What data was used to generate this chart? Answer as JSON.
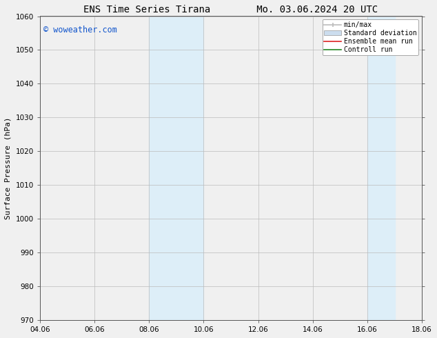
{
  "title_left": "ENS Time Series Tirana",
  "title_right": "Mo. 03.06.2024 20 UTC",
  "ylabel": "Surface Pressure (hPa)",
  "ylim": [
    970,
    1060
  ],
  "yticks": [
    970,
    980,
    990,
    1000,
    1010,
    1020,
    1030,
    1040,
    1050,
    1060
  ],
  "xlim_start": 4.06,
  "xlim_end": 18.06,
  "xtick_labels": [
    "04.06",
    "06.06",
    "08.06",
    "10.06",
    "12.06",
    "14.06",
    "16.06",
    "18.06"
  ],
  "xtick_positions": [
    4.06,
    6.06,
    8.06,
    10.06,
    12.06,
    14.06,
    16.06,
    18.06
  ],
  "shaded_bands": [
    {
      "x_start": 8.06,
      "x_end": 10.06
    },
    {
      "x_start": 16.06,
      "x_end": 17.06
    }
  ],
  "shaded_color": "#ddeef8",
  "watermark_text": "© woweather.com",
  "watermark_color": "#1155cc",
  "legend_entries": [
    {
      "label": "min/max",
      "color": "#bbbbbb",
      "lw": 1.2,
      "style": "line_with_cap"
    },
    {
      "label": "Standard deviation",
      "color": "#ccddee",
      "lw": 7,
      "style": "bar"
    },
    {
      "label": "Ensemble mean run",
      "color": "#dd2222",
      "lw": 1.2,
      "style": "line"
    },
    {
      "label": "Controll run",
      "color": "#228822",
      "lw": 1.2,
      "style": "line"
    }
  ],
  "bg_color": "#f0f0f0",
  "plot_bg_color": "#f0f0f0",
  "grid_color": "#bbbbbb",
  "title_fontsize": 10,
  "tick_fontsize": 7.5,
  "label_fontsize": 8,
  "watermark_fontsize": 8.5,
  "legend_fontsize": 7
}
